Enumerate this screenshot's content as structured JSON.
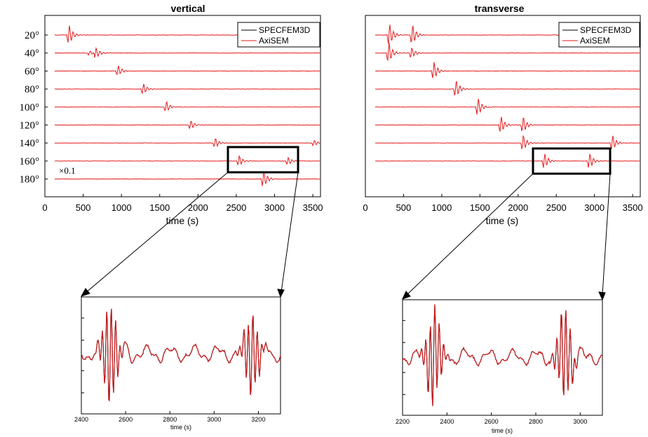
{
  "chart_data": [
    {
      "id": "vertical",
      "type": "line",
      "title": "vertical",
      "xlabel": "time (s)",
      "xlim": [
        0,
        3600
      ],
      "x_ticks": [
        0,
        500,
        1000,
        1500,
        2000,
        2500,
        3000,
        3500
      ],
      "y_tick_labels": [
        "20°",
        "40°",
        "60°",
        "80°",
        "100°",
        "120°",
        "140°",
        "160°",
        "180°"
      ],
      "legend": {
        "position": "top-right",
        "entries": [
          "SPECFEM3D",
          "AxiSEM"
        ]
      },
      "annotation": "×0.1",
      "series": [
        {
          "name": "SPECFEM3D",
          "color": "#000000"
        },
        {
          "name": "AxiSEM",
          "color": "#e41a1c"
        }
      ],
      "traces": [
        {
          "distance_deg": 20,
          "arrival_s": [
            310
          ],
          "peak_amplitude": [
            17
          ]
        },
        {
          "distance_deg": 40,
          "arrival_s": [
            580,
            660
          ],
          "peak_amplitude": [
            4,
            10
          ]
        },
        {
          "distance_deg": 60,
          "arrival_s": [
            950
          ],
          "peak_amplitude": [
            9
          ]
        },
        {
          "distance_deg": 80,
          "arrival_s": [
            1280
          ],
          "peak_amplitude": [
            9
          ]
        },
        {
          "distance_deg": 100,
          "arrival_s": [
            1580
          ],
          "peak_amplitude": [
            9
          ]
        },
        {
          "distance_deg": 120,
          "arrival_s": [
            1900
          ],
          "peak_amplitude": [
            8
          ]
        },
        {
          "distance_deg": 140,
          "arrival_s": [
            2220,
            3510
          ],
          "peak_amplitude": [
            9,
            5
          ]
        },
        {
          "distance_deg": 160,
          "arrival_s": [
            2530,
            3170
          ],
          "peak_amplitude": [
            9,
            7
          ]
        },
        {
          "distance_deg": 180,
          "arrival_s": [
            2850
          ],
          "peak_amplitude": [
            16
          ]
        }
      ],
      "zoom_box": {
        "x_range": [
          2400,
          3300
        ],
        "distance_deg": 160
      }
    },
    {
      "id": "transverse",
      "type": "line",
      "title": "transverse",
      "xlabel": "time (s)",
      "xlim": [
        0,
        3600
      ],
      "x_ticks": [
        0,
        500,
        1000,
        1500,
        2000,
        2500,
        3000,
        3500
      ],
      "legend": {
        "position": "top-right",
        "entries": [
          "SPECFEM3D",
          "AxiSEM"
        ]
      },
      "series": [
        {
          "name": "SPECFEM3D",
          "color": "#000000"
        },
        {
          "name": "AxiSEM",
          "color": "#e41a1c"
        }
      ],
      "traces": [
        {
          "distance_deg": 20,
          "arrival_s": [
            310,
            610
          ],
          "peak_amplitude": [
            20,
            18
          ]
        },
        {
          "distance_deg": 40,
          "arrival_s": [
            300,
            600
          ],
          "peak_amplitude": [
            18,
            10
          ]
        },
        {
          "distance_deg": 60,
          "arrival_s": [
            890
          ],
          "peak_amplitude": [
            16
          ]
        },
        {
          "distance_deg": 80,
          "arrival_s": [
            1180
          ],
          "peak_amplitude": [
            16
          ]
        },
        {
          "distance_deg": 100,
          "arrival_s": [
            1470
          ],
          "peak_amplitude": [
            16
          ]
        },
        {
          "distance_deg": 120,
          "arrival_s": [
            1770,
            2060
          ],
          "peak_amplitude": [
            15,
            14
          ]
        },
        {
          "distance_deg": 140,
          "arrival_s": [
            2060,
            3230
          ],
          "peak_amplitude": [
            14,
            14
          ]
        },
        {
          "distance_deg": 160,
          "arrival_s": [
            2340,
            2930
          ],
          "peak_amplitude": [
            14,
            14
          ]
        }
      ],
      "zoom_box": {
        "x_range": [
          2200,
          3100
        ],
        "distance_deg": 160
      }
    },
    {
      "id": "vertical-zoom",
      "type": "line",
      "xlabel": "time (s)",
      "xlim": [
        2400,
        3300
      ],
      "x_ticks": [
        2400,
        2600,
        2800,
        3000,
        3200
      ],
      "series": [
        {
          "name": "SPECFEM3D",
          "color": "#000000"
        },
        {
          "name": "AxiSEM",
          "color": "#e41a1c"
        }
      ],
      "events": [
        {
          "t": 2530,
          "amplitude": 1.0
        },
        {
          "t": 3170,
          "amplitude": 0.8
        }
      ]
    },
    {
      "id": "transverse-zoom",
      "type": "line",
      "xlabel": "time (s)",
      "xlim": [
        2200,
        3100
      ],
      "x_ticks": [
        2200,
        2400,
        2600,
        2800,
        3000
      ],
      "series": [
        {
          "name": "SPECFEM3D",
          "color": "#000000"
        },
        {
          "name": "AxiSEM",
          "color": "#e41a1c"
        }
      ],
      "events": [
        {
          "t": 2340,
          "amplitude": 1.0
        },
        {
          "t": 2930,
          "amplitude": 0.95
        }
      ]
    }
  ]
}
